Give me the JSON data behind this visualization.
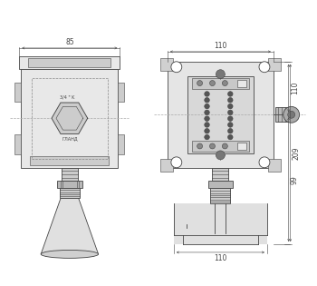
{
  "bg_color": "#ffffff",
  "line_color": "#444444",
  "dim_color": "#444444",
  "fig_width": 3.5,
  "fig_height": 3.15,
  "dpi": 100,
  "dim_85": "85",
  "dim_110_top": "110",
  "dim_110_side": "110",
  "dim_209": "209",
  "dim_99": "99",
  "dim_110_bot": "110",
  "cl_color": "#aaaaaa",
  "gray_light": "#e8e8e8",
  "gray_mid": "#cccccc",
  "gray_dark": "#aaaaaa",
  "white": "#ffffff"
}
